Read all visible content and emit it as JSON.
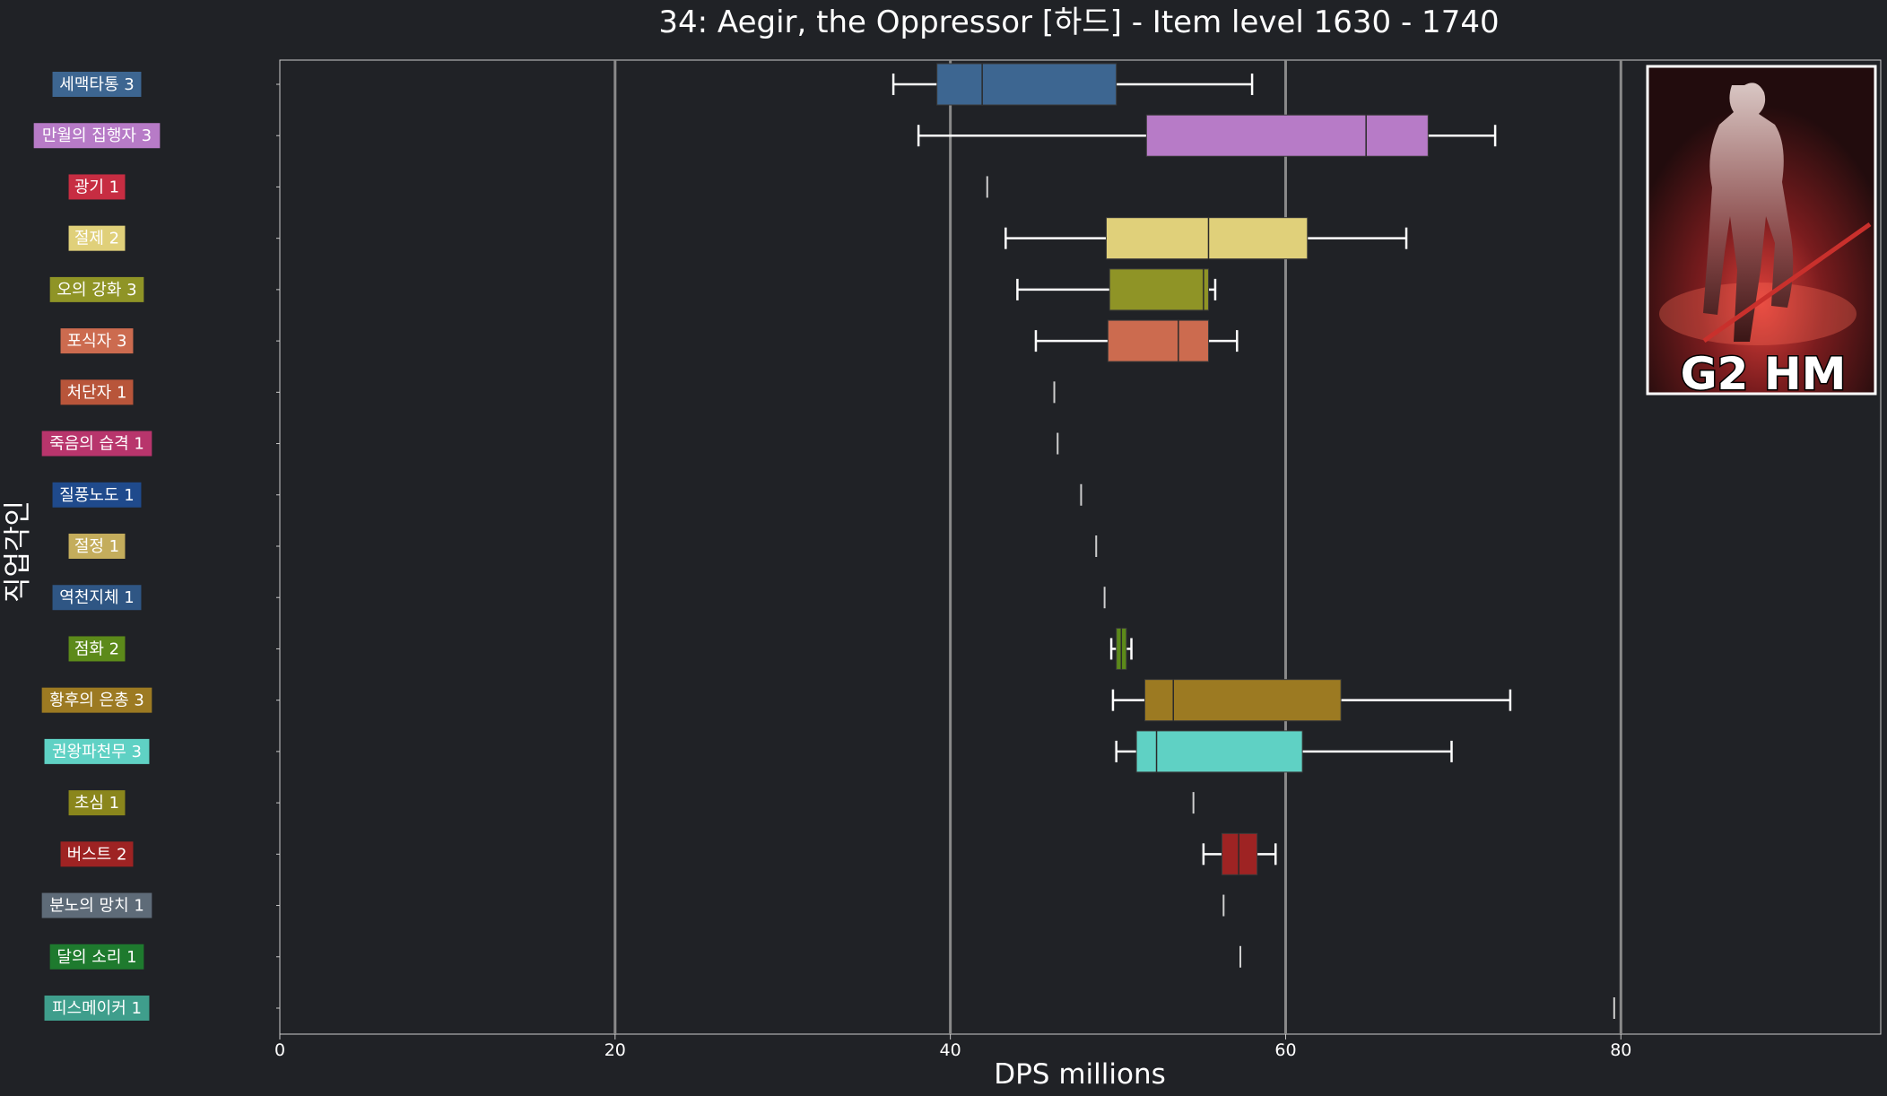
{
  "chart_data": {
    "type": "box",
    "orientation": "horizontal",
    "title": "34: Aegir, the Oppressor [하드] - Item level 1630 - 1740",
    "xlabel": "DPS millions",
    "ylabel": "직업각인",
    "xlim": [
      0,
      95.5
    ],
    "xticks": [
      0,
      20,
      40,
      60,
      80
    ],
    "grid": "vertical",
    "badge": "G2 HM",
    "series": [
      {
        "label": "세맥타통 3",
        "color": "#3d6691",
        "min": 36.6,
        "q1": 39.2,
        "median": 41.9,
        "q3": 49.9,
        "max": 58.0
      },
      {
        "label": "만월의 집행자 3",
        "color": "#b77bc7",
        "min": 38.1,
        "q1": 51.7,
        "median": 64.8,
        "q3": 68.5,
        "max": 72.5
      },
      {
        "label": "광기 1",
        "color": "#c72d42",
        "min": 42.2,
        "q1": 42.2,
        "median": 42.2,
        "q3": 42.2,
        "max": 42.2
      },
      {
        "label": "절제 2",
        "color": "#e0d07a",
        "min": 43.3,
        "q1": 49.3,
        "median": 55.4,
        "q3": 61.3,
        "max": 67.2
      },
      {
        "label": "오의 강화 3",
        "color": "#8f9426",
        "min": 44.0,
        "q1": 49.5,
        "median": 55.1,
        "q3": 55.4,
        "max": 55.8
      },
      {
        "label": "포식자 3",
        "color": "#cc6b4f",
        "min": 45.1,
        "q1": 49.4,
        "median": 53.6,
        "q3": 55.4,
        "max": 57.1
      },
      {
        "label": "처단자 1",
        "color": "#b8553a",
        "min": 46.2,
        "q1": 46.2,
        "median": 46.2,
        "q3": 46.2,
        "max": 46.2
      },
      {
        "label": "죽음의 습격 1",
        "color": "#b8356c",
        "min": 46.4,
        "q1": 46.4,
        "median": 46.4,
        "q3": 46.4,
        "max": 46.4
      },
      {
        "label": "질풍노도 1",
        "color": "#1f4a8c",
        "min": 47.8,
        "q1": 47.8,
        "median": 47.8,
        "q3": 47.8,
        "max": 47.8
      },
      {
        "label": "절정 1",
        "color": "#c4ad5c",
        "min": 48.7,
        "q1": 48.7,
        "median": 48.7,
        "q3": 48.7,
        "max": 48.7
      },
      {
        "label": "역천지체 1",
        "color": "#2f5684",
        "min": 49.2,
        "q1": 49.2,
        "median": 49.2,
        "q3": 49.2,
        "max": 49.2
      },
      {
        "label": "점화 2",
        "color": "#5c8a1a",
        "min": 49.6,
        "q1": 49.9,
        "median": 50.2,
        "q3": 50.5,
        "max": 50.8
      },
      {
        "label": "황후의 은총 3",
        "color": "#9c7a22",
        "min": 49.7,
        "q1": 51.6,
        "median": 53.3,
        "q3": 63.3,
        "max": 73.4
      },
      {
        "label": "권왕파천무 3",
        "color": "#5fd1c4",
        "min": 49.9,
        "q1": 51.1,
        "median": 52.3,
        "q3": 61.0,
        "max": 69.9
      },
      {
        "label": "초심 1",
        "color": "#8a861c",
        "min": 54.5,
        "q1": 54.5,
        "median": 54.5,
        "q3": 54.5,
        "max": 54.5
      },
      {
        "label": "버스트 2",
        "color": "#9e2323",
        "min": 55.1,
        "q1": 56.2,
        "median": 57.2,
        "q3": 58.3,
        "max": 59.4
      },
      {
        "label": "분노의 망치 1",
        "color": "#5e6b78",
        "min": 56.3,
        "q1": 56.3,
        "median": 56.3,
        "q3": 56.3,
        "max": 56.3
      },
      {
        "label": "달의 소리 1",
        "color": "#1e7a2e",
        "min": 57.3,
        "q1": 57.3,
        "median": 57.3,
        "q3": 57.3,
        "max": 57.3
      },
      {
        "label": "피스메이커 1",
        "color": "#3f9e8c",
        "min": 79.6,
        "q1": 79.6,
        "median": 79.6,
        "q3": 79.6,
        "max": 79.6
      }
    ]
  }
}
